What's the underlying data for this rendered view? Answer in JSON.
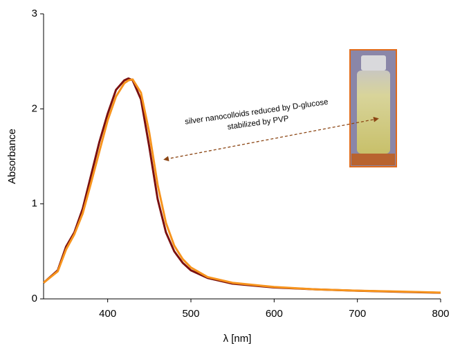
{
  "chart_data": {
    "type": "line",
    "x_label": "λ [nm]",
    "y_label": "Absorbance",
    "annotation": [
      "silver nanocolloids reduced by D-glucose",
      "stabilized by PVP"
    ],
    "x": [
      323,
      340,
      350,
      360,
      370,
      380,
      390,
      400,
      410,
      420,
      425,
      430,
      440,
      450,
      460,
      470,
      480,
      490,
      500,
      520,
      550,
      600,
      650,
      700,
      750,
      800
    ],
    "series": [
      {
        "color": "#7a1010",
        "values": [
          0.17,
          0.3,
          0.55,
          0.7,
          0.95,
          1.3,
          1.65,
          1.95,
          2.2,
          2.3,
          2.32,
          2.3,
          2.1,
          1.6,
          1.05,
          0.7,
          0.5,
          0.38,
          0.3,
          0.22,
          0.16,
          0.12,
          0.1,
          0.085,
          0.075,
          0.065
        ]
      },
      {
        "color": "#f7941d",
        "values": [
          0.17,
          0.29,
          0.52,
          0.68,
          0.9,
          1.22,
          1.55,
          1.88,
          2.13,
          2.27,
          2.3,
          2.31,
          2.17,
          1.75,
          1.2,
          0.8,
          0.56,
          0.42,
          0.33,
          0.23,
          0.17,
          0.125,
          0.1,
          0.087,
          0.077,
          0.066
        ]
      }
    ],
    "xlim": [
      323,
      800
    ],
    "ylim": [
      0,
      3
    ],
    "xticks": [
      400,
      500,
      600,
      700,
      800
    ],
    "yticks": [
      0,
      1,
      2,
      3
    ]
  }
}
